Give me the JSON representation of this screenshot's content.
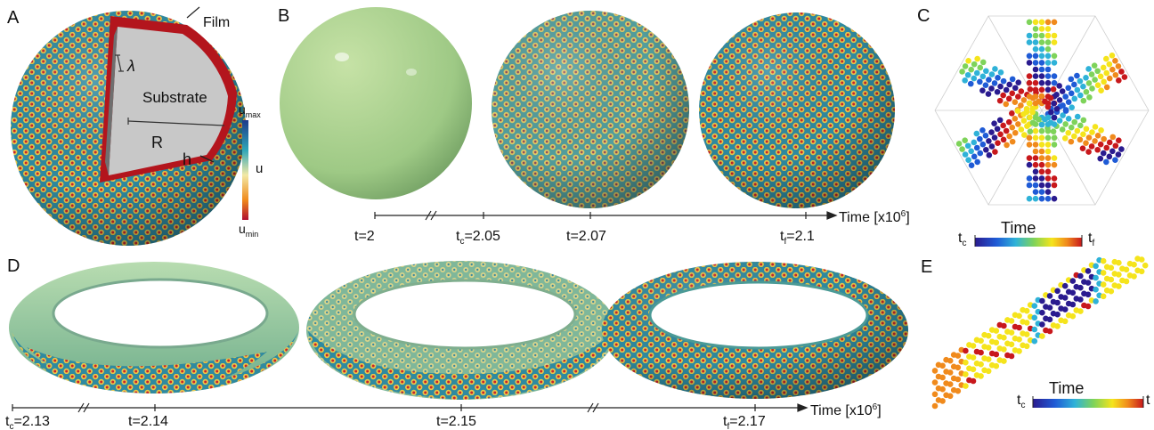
{
  "panels": {
    "a": "A",
    "b": "B",
    "c": "C",
    "d": "D",
    "e": "E"
  },
  "panel_a": {
    "film": "Film",
    "lambda": "λ",
    "substrate": "Substrate",
    "radius": "R",
    "thickness": "h",
    "u_max": "u",
    "u_max_sub": "max",
    "u_label": "u",
    "u_min": "u",
    "u_min_sub": "min"
  },
  "panel_b": {
    "axis_label": "Time [x10",
    "axis_label_sup": "6",
    "axis_label_end": "]",
    "ticks": [
      {
        "label": "t=2"
      },
      {
        "label_pre": "t",
        "label_sub": "c",
        "label_post": "=2.05"
      },
      {
        "label": "t=2.07"
      },
      {
        "label_pre": "t",
        "label_sub": "f",
        "label_post": "=2.1"
      }
    ]
  },
  "panel_c": {
    "title": "Time",
    "start": "t",
    "start_sub": "c",
    "end": "t",
    "end_sub": "f"
  },
  "panel_d": {
    "axis_label": "Time [x10",
    "axis_label_sup": "6",
    "axis_label_end": "]",
    "ticks": [
      {
        "label_pre": "t",
        "label_sub": "c",
        "label_post": "=2.13"
      },
      {
        "label": "t=2.14"
      },
      {
        "label": "t=2.15"
      },
      {
        "label_pre": "t",
        "label_sub": "f",
        "label_post": "=2.17"
      }
    ]
  },
  "panel_e": {
    "title": "Time",
    "start": "t",
    "start_sub": "c",
    "end": "t",
    "end_sub": "f"
  },
  "colors": {
    "film": "#b3151d",
    "substrate": "#c8c8c8",
    "flat_shell": "#a8cf8e",
    "pattern_bg": "#2f8aa0",
    "dot_outer": "#e8c94a",
    "dot_core": "#c8252c",
    "colormap": [
      "#2a1b8f",
      "#1f5bd6",
      "#2fb2d8",
      "#7ed35a",
      "#f5e41c",
      "#f08a1c",
      "#c8181c"
    ]
  }
}
